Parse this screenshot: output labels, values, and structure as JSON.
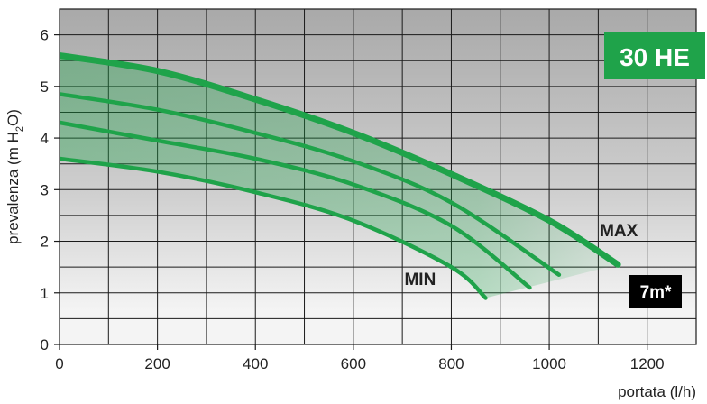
{
  "chart_data": {
    "type": "line",
    "badge": "30 HE",
    "note": "7m*",
    "xlabel": "portata (l/h)",
    "ylabel_main": "prevalenza (m H",
    "ylabel_sub": "2",
    "ylabel_tail": "O)",
    "xlim": [
      0,
      1300
    ],
    "ylim": [
      0,
      6.5
    ],
    "x_ticks": [
      0,
      200,
      400,
      600,
      800,
      1000,
      1200
    ],
    "y_ticks": [
      0,
      1,
      2,
      3,
      4,
      5,
      6
    ],
    "grid": true,
    "curve_labels": {
      "max": "MAX",
      "min": "MIN"
    },
    "series": [
      {
        "name": "MAX",
        "x": [
          0,
          200,
          400,
          600,
          800,
          1000,
          1140
        ],
        "y": [
          5.6,
          5.3,
          4.75,
          4.1,
          3.3,
          2.4,
          1.55
        ]
      },
      {
        "x": [
          0,
          200,
          400,
          600,
          800,
          1020
        ],
        "y": [
          4.85,
          4.55,
          4.1,
          3.55,
          2.75,
          1.35
        ]
      },
      {
        "x": [
          0,
          200,
          400,
          600,
          800,
          960
        ],
        "y": [
          4.3,
          3.95,
          3.6,
          3.1,
          2.3,
          1.1
        ]
      },
      {
        "name": "MIN",
        "x": [
          0,
          200,
          400,
          600,
          800,
          870
        ],
        "y": [
          3.6,
          3.35,
          2.95,
          2.4,
          1.5,
          0.9
        ]
      }
    ],
    "colors": {
      "curve": "#1fa34a",
      "fill": "#1fa34a",
      "badge": "#1fa34a",
      "note_bg": "#000000",
      "grid": "#1a1a1a",
      "bg_top": "#a9a9a9",
      "bg_bottom": "#f4f4f4"
    }
  }
}
